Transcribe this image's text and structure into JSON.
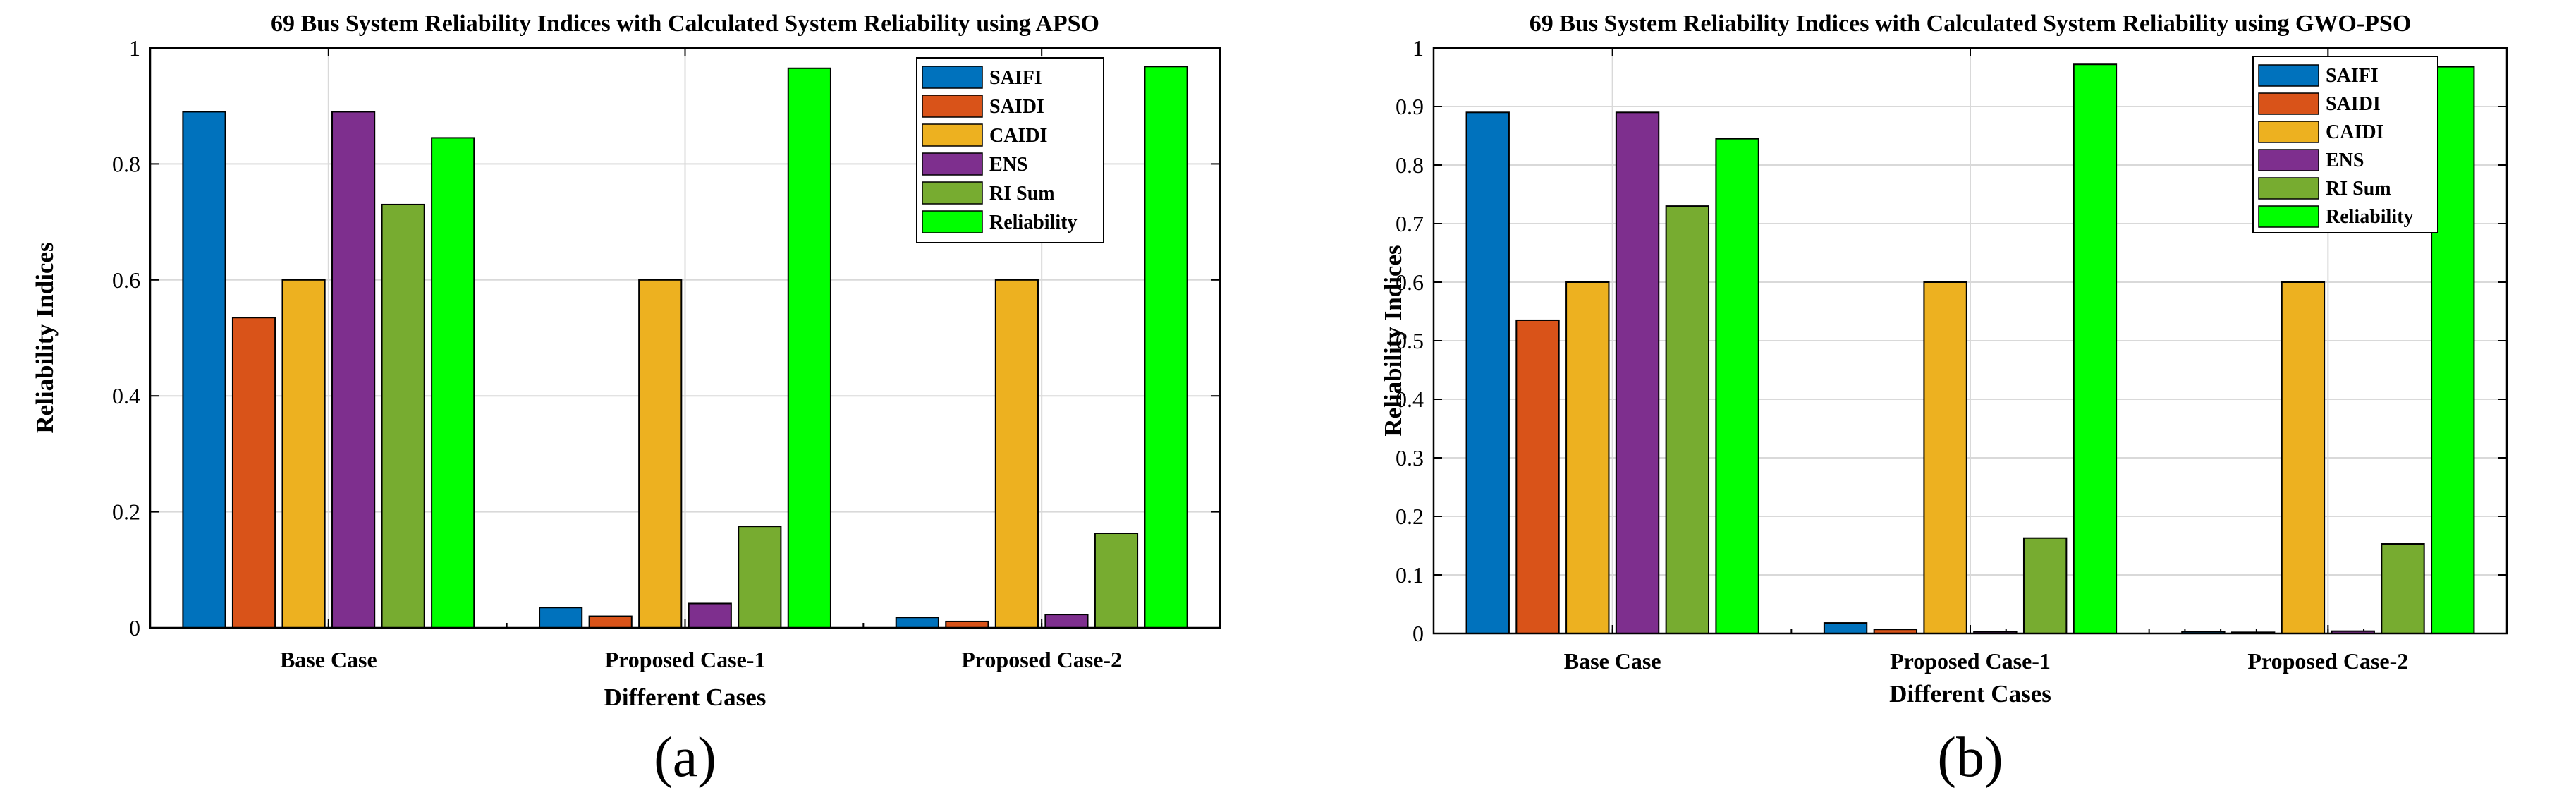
{
  "chart_data": [
    {
      "type": "bar",
      "panel_label": "(a)",
      "title": "69 Bus System Reliability Indices with Calculated System Reliability using APSO",
      "xlabel": "Different Cases",
      "ylabel": "Reliability Indices",
      "categories": [
        "Base Case",
        "Proposed Case-1",
        "Proposed Case-2"
      ],
      "ylim": [
        0,
        1
      ],
      "yticks": [
        0,
        0.2,
        0.4,
        0.6,
        0.8,
        1
      ],
      "ytick_labels": [
        "0",
        "0.2",
        "0.4",
        "0.6",
        "0.8",
        "1"
      ],
      "grid": true,
      "legend_position": "top-right",
      "series": [
        {
          "name": "SAIFI",
          "color": "#0072BD",
          "values": [
            0.89,
            0.035,
            0.018
          ]
        },
        {
          "name": "SAIDI",
          "color": "#D95319",
          "values": [
            0.535,
            0.02,
            0.011
          ]
        },
        {
          "name": "CAIDI",
          "color": "#EDB120",
          "values": [
            0.6,
            0.6,
            0.6
          ]
        },
        {
          "name": "ENS",
          "color": "#7E2F8E",
          "values": [
            0.89,
            0.042,
            0.023
          ]
        },
        {
          "name": "RI Sum",
          "color": "#77AC30",
          "values": [
            0.73,
            0.175,
            0.163
          ]
        },
        {
          "name": "Reliability",
          "color": "#00FF00",
          "values": [
            0.845,
            0.965,
            0.968
          ]
        }
      ]
    },
    {
      "type": "bar",
      "panel_label": "(b)",
      "title": "69 Bus System Reliability Indices with Calculated System Reliability using GWO-PSO",
      "xlabel": "Different Cases",
      "ylabel": "Reliability Indices",
      "categories": [
        "Base Case",
        "Proposed Case-1",
        "Proposed Case-2"
      ],
      "ylim": [
        0,
        1
      ],
      "yticks": [
        0,
        0.1,
        0.2,
        0.3,
        0.4,
        0.5,
        0.6,
        0.7,
        0.8,
        0.9,
        1
      ],
      "ytick_labels": [
        "0",
        "0.1",
        "0.2",
        "0.3",
        "0.4",
        "0.5",
        "0.6",
        "0.7",
        "0.8",
        "0.9",
        "1"
      ],
      "grid": true,
      "legend_position": "top-right",
      "series": [
        {
          "name": "SAIFI",
          "color": "#0072BD",
          "values": [
            0.89,
            0.018,
            0.003
          ]
        },
        {
          "name": "SAIDI",
          "color": "#D95319",
          "values": [
            0.535,
            0.007,
            0.002
          ]
        },
        {
          "name": "CAIDI",
          "color": "#EDB120",
          "values": [
            0.6,
            0.6,
            0.6
          ]
        },
        {
          "name": "ENS",
          "color": "#7E2F8E",
          "values": [
            0.89,
            0.003,
            0.004
          ]
        },
        {
          "name": "RI Sum",
          "color": "#77AC30",
          "values": [
            0.73,
            0.163,
            0.153
          ]
        },
        {
          "name": "Reliability",
          "color": "#00FF00",
          "values": [
            0.845,
            0.972,
            0.968
          ]
        }
      ]
    }
  ]
}
